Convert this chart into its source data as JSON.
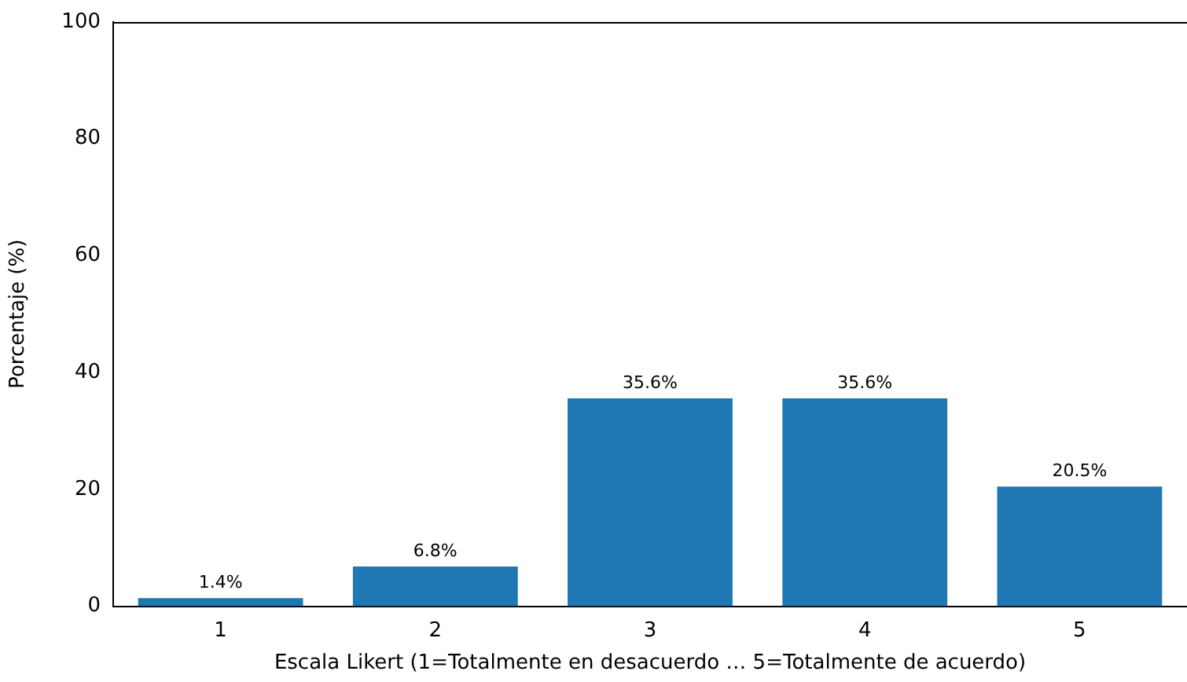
{
  "chart_data": {
    "type": "bar",
    "xlabel": "Escala Likert (1=Totalmente en desacuerdo … 5=Totalmente de acuerdo)",
    "ylabel": "Porcentaje (%)",
    "categories": [
      "1",
      "2",
      "3",
      "4",
      "5"
    ],
    "values": [
      1.4,
      6.8,
      35.6,
      35.6,
      20.5
    ],
    "value_labels": [
      "1.4%",
      "6.8%",
      "35.6%",
      "35.6%",
      "20.5%"
    ],
    "color": "#1f77b4",
    "ylim": [
      0,
      100
    ],
    "yticks": [
      0,
      20,
      40,
      60,
      80,
      100
    ],
    "grid": false,
    "legend": false
  }
}
